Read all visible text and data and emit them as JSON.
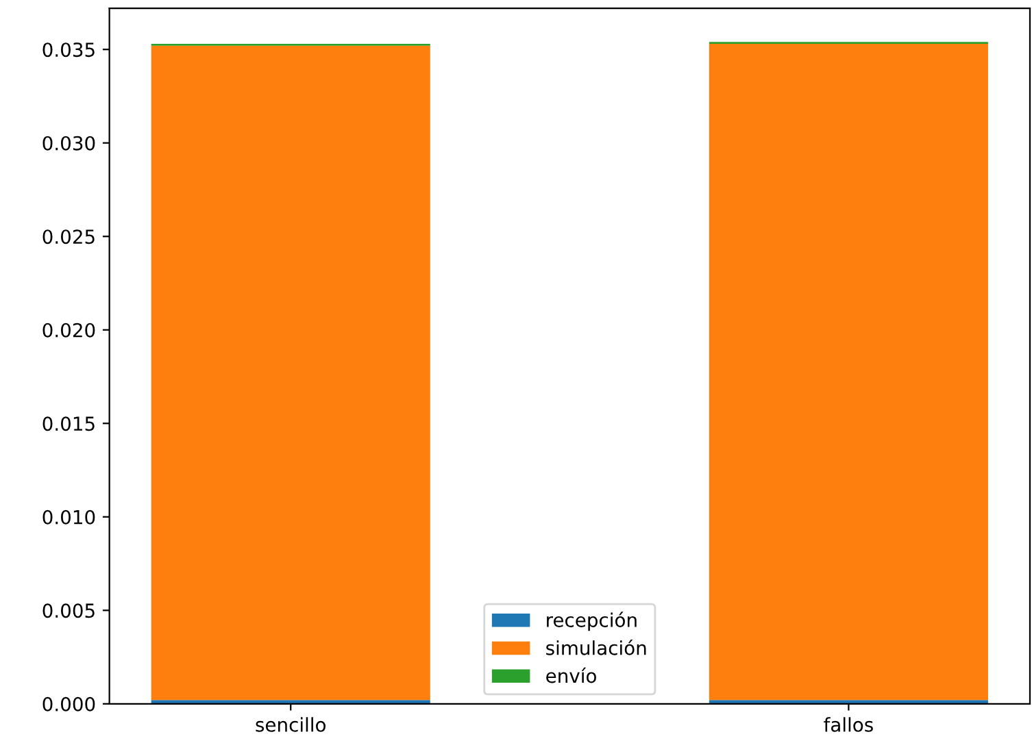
{
  "chart_data": {
    "type": "bar",
    "stacked": true,
    "categories": [
      "sencillo",
      "fallos"
    ],
    "series": [
      {
        "name": "recepción",
        "color": "#1f77b4",
        "values": [
          0.0002,
          0.0002
        ]
      },
      {
        "name": "simulación",
        "color": "#ff7f0e",
        "values": [
          0.035,
          0.0351
        ]
      },
      {
        "name": "envío",
        "color": "#2ca02c",
        "values": [
          0.0001,
          0.0001
        ]
      }
    ],
    "ylim": [
      0,
      0.0372
    ],
    "yticks": [
      {
        "value": 0,
        "label": "0.000"
      },
      {
        "value": 0.005,
        "label": "0.005"
      },
      {
        "value": 0.01,
        "label": "0.010"
      },
      {
        "value": 0.015,
        "label": "0.015"
      },
      {
        "value": 0.02,
        "label": "0.020"
      },
      {
        "value": 0.025,
        "label": "0.025"
      },
      {
        "value": 0.03,
        "label": "0.030"
      },
      {
        "value": 0.035,
        "label": "0.035"
      }
    ],
    "legend": "bottom"
  }
}
